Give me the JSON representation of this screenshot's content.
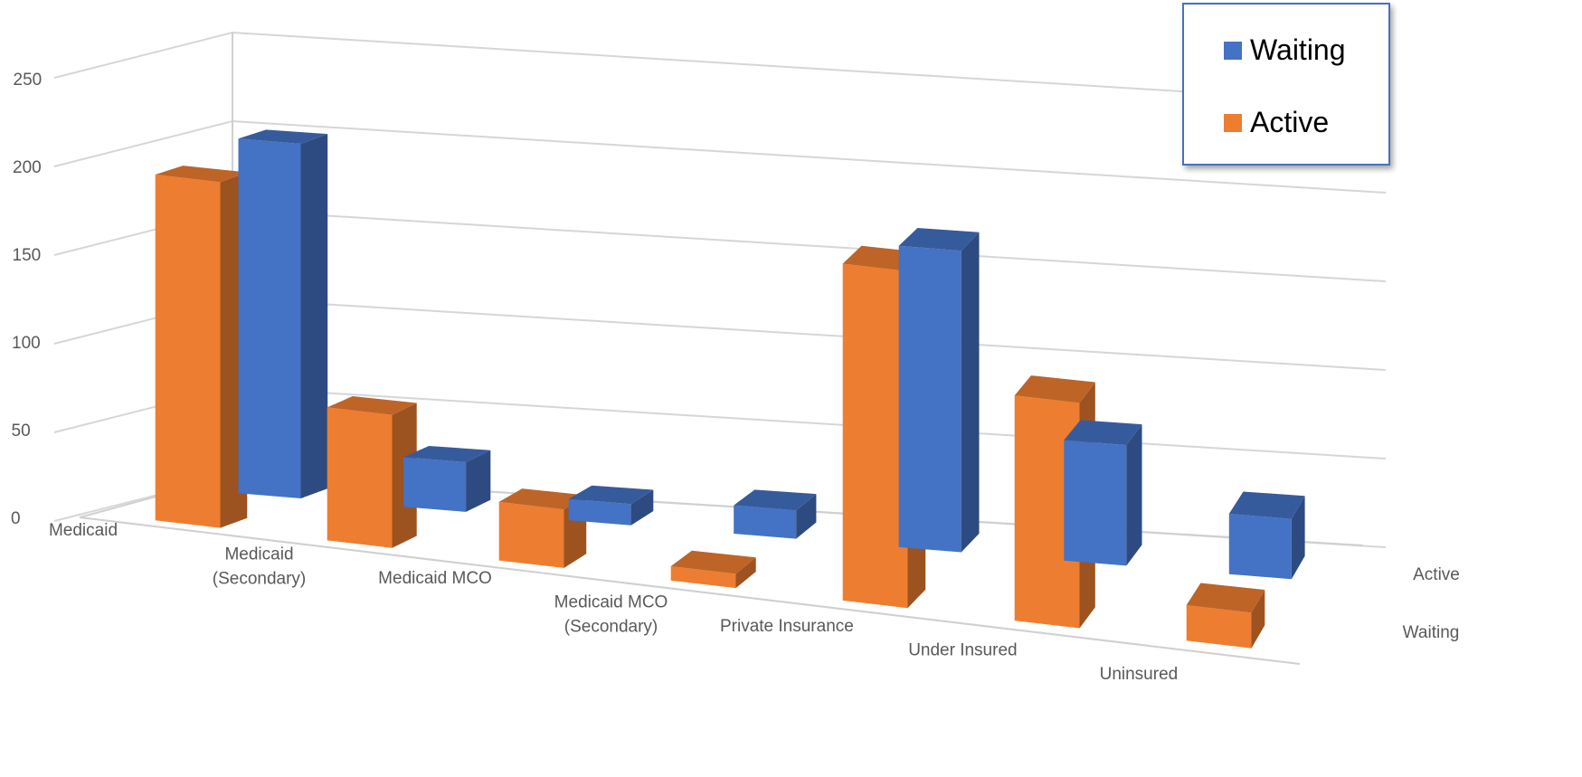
{
  "chart_data": {
    "type": "bar",
    "subtype": "3d-column",
    "categories": [
      "Medicaid",
      "Medicaid (Secondary)",
      "Medicaid MCO",
      "Medicaid MCO (Secondary)",
      "Private Insurance",
      "Under Insured",
      "Uninsured"
    ],
    "category_lines": [
      [
        "Medicaid"
      ],
      [
        "Medicaid",
        "(Secondary)"
      ],
      [
        "Medicaid MCO"
      ],
      [
        "Medicaid MCO",
        "(Secondary)"
      ],
      [
        "Private Insurance"
      ],
      [
        "Under Insured"
      ],
      [
        "Uninsured"
      ]
    ],
    "series": [
      {
        "name": "Waiting",
        "values": [
          200,
          28,
          12,
          16,
          170,
          68,
          34
        ],
        "color": "#4472c4"
      },
      {
        "name": "Active",
        "values": [
          195,
          75,
          33,
          8,
          190,
          127,
          20
        ],
        "color": "#ed7d31"
      }
    ],
    "depth_labels": [
      "Active",
      "Waiting"
    ],
    "yticks": [
      0,
      50,
      100,
      150,
      200,
      250
    ],
    "ylim": [
      0,
      250
    ],
    "grid": true,
    "legend": {
      "position": "top-right",
      "items": [
        "Waiting",
        "Active"
      ]
    }
  }
}
